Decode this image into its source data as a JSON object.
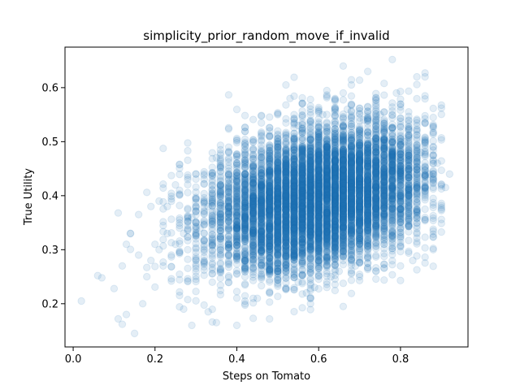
{
  "chart_data": {
    "type": "scatter",
    "title": "simplicity_prior_random_move_if_invalid",
    "xlabel": "Steps on Tomato",
    "ylabel": "True Utility",
    "xlim": [
      -0.02,
      0.965
    ],
    "ylim": [
      0.12,
      0.675
    ],
    "xticks": [
      {
        "value": 0.0,
        "label": "0.0"
      },
      {
        "value": 0.2,
        "label": "0.2"
      },
      {
        "value": 0.4,
        "label": "0.4"
      },
      {
        "value": 0.6,
        "label": "0.6"
      },
      {
        "value": 0.8,
        "label": "0.8"
      }
    ],
    "yticks": [
      {
        "value": 0.2,
        "label": "0.2"
      },
      {
        "value": 0.3,
        "label": "0.3"
      },
      {
        "value": 0.4,
        "label": "0.4"
      },
      {
        "value": 0.5,
        "label": "0.5"
      },
      {
        "value": 0.6,
        "label": "0.6"
      }
    ],
    "grid": false,
    "point_color": "#1f77b4",
    "point_alpha": 0.12,
    "series": [
      {
        "x": [
          0.02,
          0.06,
          0.07,
          0.1,
          0.11,
          0.11,
          0.12,
          0.12,
          0.13,
          0.13,
          0.14,
          0.15,
          0.16,
          0.16,
          0.18,
          0.19,
          0.2,
          0.21,
          0.22,
          0.23,
          0.24,
          0.25,
          0.26,
          0.27,
          0.28,
          0.29,
          0.3,
          0.31,
          0.32,
          0.33,
          0.34,
          0.35,
          0.36,
          0.37,
          0.38,
          0.39,
          0.4,
          0.41,
          0.42,
          0.43,
          0.44,
          0.45,
          0.46,
          0.47,
          0.48,
          0.49,
          0.5,
          0.51,
          0.52,
          0.53,
          0.54,
          0.55,
          0.56,
          0.57,
          0.58,
          0.59,
          0.6,
          0.61,
          0.62,
          0.63,
          0.64,
          0.65,
          0.66,
          0.67,
          0.68,
          0.69,
          0.7,
          0.71,
          0.72,
          0.73,
          0.74,
          0.75,
          0.76,
          0.77,
          0.78,
          0.79,
          0.8,
          0.81,
          0.82,
          0.84,
          0.86,
          0.88,
          0.89,
          0.91,
          0.92,
          0.52,
          0.53,
          0.66,
          0.68,
          0.72,
          0.78,
          0.79,
          0.84,
          0.4,
          0.39,
          0.38,
          0.17,
          0.27,
          0.29,
          0.33,
          0.35,
          0.45,
          0.58,
          0.62,
          0.7,
          0.74,
          0.8,
          0.83,
          0.35,
          0.36,
          0.23,
          0.26,
          0.5,
          0.56,
          0.6,
          0.64,
          0.48,
          0.55,
          0.61,
          0.67,
          0.71,
          0.75,
          0.44,
          0.42,
          0.3,
          0.25,
          0.21,
          0.19,
          0.14,
          0.55,
          0.57,
          0.59,
          0.63,
          0.65,
          0.69,
          0.5,
          0.47,
          0.46,
          0.52,
          0.54,
          0.73,
          0.76,
          0.81,
          0.85,
          0.87
        ],
        "y": [
          0.205,
          0.252,
          0.248,
          0.228,
          0.368,
          0.172,
          0.27,
          0.162,
          0.18,
          0.31,
          0.33,
          0.145,
          0.365,
          0.29,
          0.25,
          0.28,
          0.31,
          0.3,
          0.27,
          0.33,
          0.29,
          0.31,
          0.34,
          0.33,
          0.3,
          0.36,
          0.35,
          0.34,
          0.37,
          0.38,
          0.36,
          0.37,
          0.39,
          0.38,
          0.36,
          0.37,
          0.38,
          0.37,
          0.36,
          0.38,
          0.37,
          0.39,
          0.38,
          0.37,
          0.39,
          0.38,
          0.37,
          0.4,
          0.39,
          0.38,
          0.4,
          0.39,
          0.41,
          0.4,
          0.39,
          0.42,
          0.41,
          0.4,
          0.42,
          0.41,
          0.43,
          0.42,
          0.41,
          0.43,
          0.42,
          0.41,
          0.42,
          0.41,
          0.43,
          0.42,
          0.4,
          0.42,
          0.41,
          0.39,
          0.4,
          0.41,
          0.39,
          0.38,
          0.41,
          0.42,
          0.4,
          0.3,
          0.46,
          0.415,
          0.44,
          0.605,
          0.58,
          0.64,
          0.605,
          0.63,
          0.652,
          0.59,
          0.62,
          0.16,
          0.43,
          0.48,
          0.2,
          0.19,
          0.16,
          0.185,
          0.165,
          0.21,
          0.2,
          0.23,
          0.25,
          0.26,
          0.27,
          0.28,
          0.47,
          0.455,
          0.38,
          0.41,
          0.55,
          0.57,
          0.56,
          0.58,
          0.52,
          0.53,
          0.55,
          0.56,
          0.54,
          0.55,
          0.5,
          0.46,
          0.44,
          0.42,
          0.39,
          0.38,
          0.33,
          0.24,
          0.22,
          0.23,
          0.25,
          0.26,
          0.27,
          0.26,
          0.27,
          0.3,
          0.29,
          0.31,
          0.5,
          0.52,
          0.5,
          0.48,
          0.44
        ]
      }
    ],
    "cloud": {
      "count": 9000,
      "x_mean": 0.6,
      "x_sd": 0.13,
      "y_base": 0.3,
      "y_slope": 0.16,
      "y_sd": 0.062
    }
  }
}
